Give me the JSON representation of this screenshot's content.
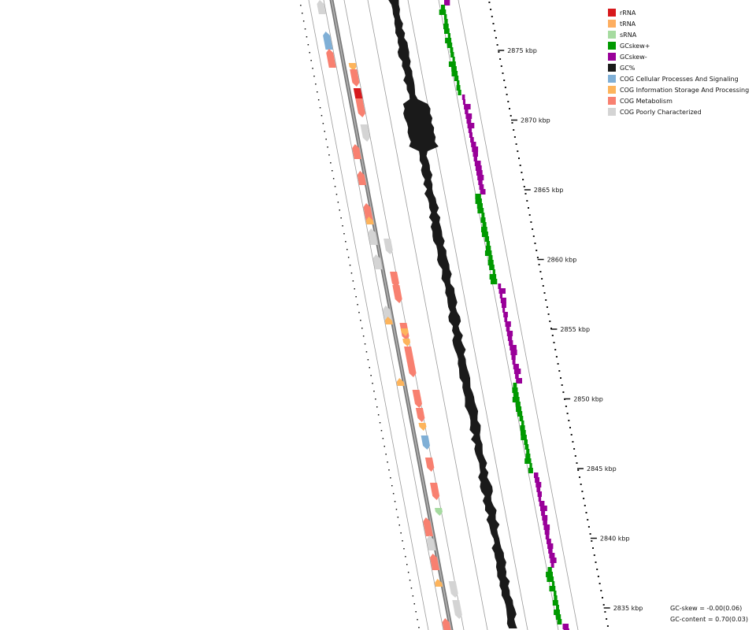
{
  "legend": [
    {
      "label": "rRNA",
      "color": "#d7191c",
      "icon": "rrna-swatch"
    },
    {
      "label": "tRNA",
      "color": "#fdae61",
      "icon": "trna-swatch"
    },
    {
      "label": "sRNA",
      "color": "#a6dba0",
      "icon": "srna-swatch"
    },
    {
      "label": "GCskew+",
      "color": "#009900",
      "icon": "gcskew-plus-swatch"
    },
    {
      "label": "GCskew-",
      "color": "#990099",
      "icon": "gcskew-minus-swatch"
    },
    {
      "label": "GC%",
      "color": "#1a1a1a",
      "icon": "gc-content-swatch"
    },
    {
      "label": "COG Cellular Processes And Signaling",
      "color": "#7fafd6",
      "icon": "cog-cellular-swatch"
    },
    {
      "label": "COG Information Storage And Processing",
      "color": "#fdb45c",
      "icon": "cog-information-swatch"
    },
    {
      "label": "COG Metabolism",
      "color": "#f88070",
      "icon": "cog-metabolism-swatch"
    },
    {
      "label": "COG Poorly Characterized",
      "color": "#d4d4d4",
      "icon": "cog-poorly-swatch"
    }
  ],
  "ticks": [
    {
      "label": "2875 kbp",
      "pos_kbp": 2875
    },
    {
      "label": "2870 kbp",
      "pos_kbp": 2870
    },
    {
      "label": "2865 kbp",
      "pos_kbp": 2865
    },
    {
      "label": "2860 kbp",
      "pos_kbp": 2860
    },
    {
      "label": "2855 kbp",
      "pos_kbp": 2855
    },
    {
      "label": "2850 kbp",
      "pos_kbp": 2850
    },
    {
      "label": "2845 kbp",
      "pos_kbp": 2845
    },
    {
      "label": "2840 kbp",
      "pos_kbp": 2840
    },
    {
      "label": "2835 kbp",
      "pos_kbp": 2835
    }
  ],
  "stats": {
    "gc_skew": "GC-skew = -0.00(0.06)",
    "gc_content": "GC-content = 0.70(0.03)"
  }
}
